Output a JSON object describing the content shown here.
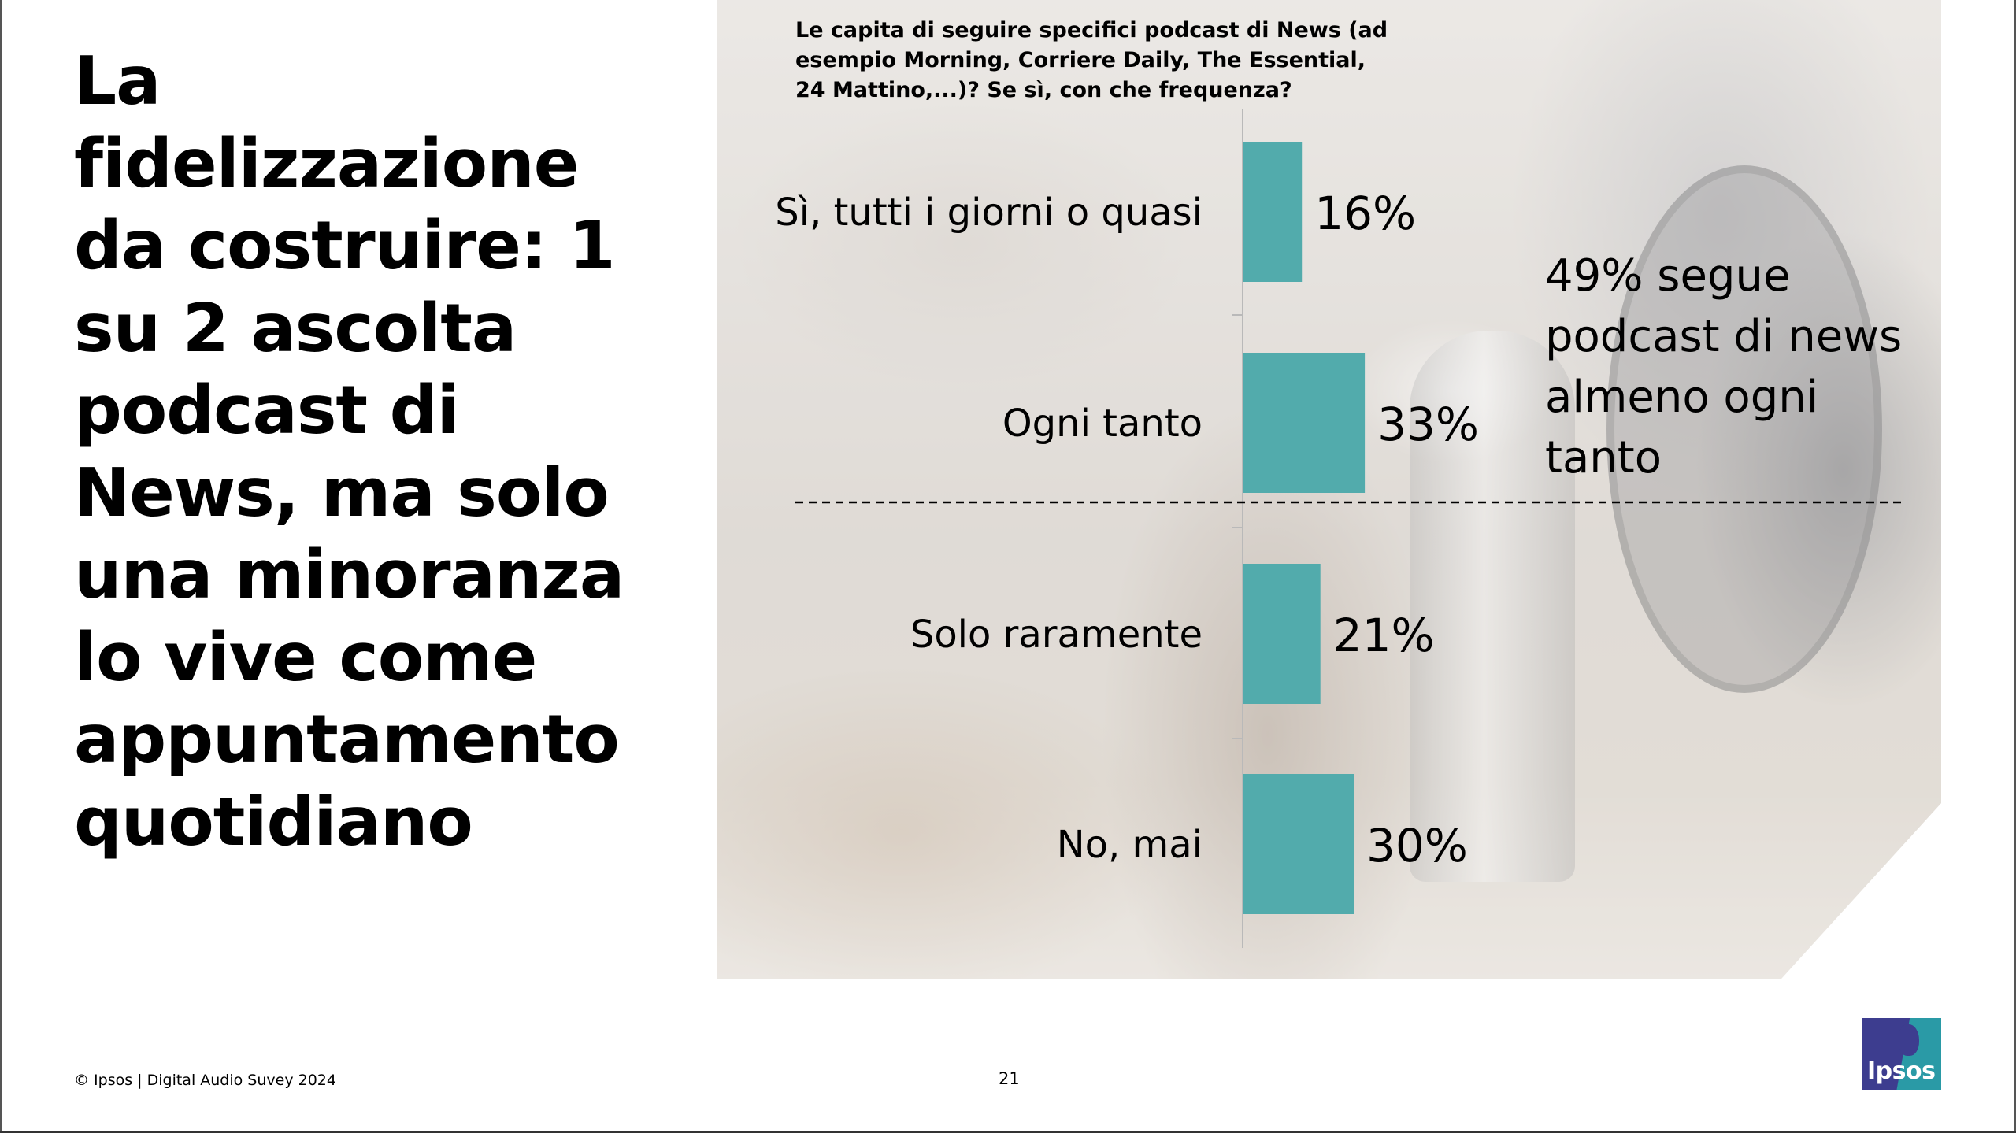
{
  "headline": "La fidelizzazione da costruire: 1 su 2 ascolta podcast di News, ma solo una minoranza lo vive come appuntamento quotidiano",
  "question": "Le capita di seguire specifici podcast di News (ad esempio Morning, Corriere Daily, The Essential, 24 Mattino,...)? Se sì, con che frequenza?",
  "callout": "49% segue podcast di news almeno ogni tanto",
  "colors": {
    "bar": "#52ABAC"
  },
  "chart_data": {
    "type": "bar",
    "orientation": "horizontal",
    "categories": [
      "Sì, tutti i giorni o quasi",
      "Ogni tanto",
      "Solo raramente",
      "No, mai"
    ],
    "values": [
      16,
      33,
      21,
      30
    ],
    "value_labels": [
      "16%",
      "33%",
      "21%",
      "30%"
    ],
    "unit": "%",
    "title": "",
    "xlabel": "",
    "ylabel": "",
    "grid": false,
    "separator": "dashed line between Ogni tanto and Solo raramente"
  },
  "footer": {
    "source": "© Ipsos | Digital Audio Suvey 2024",
    "page_number": "21",
    "logo_text": "Ipsos"
  }
}
